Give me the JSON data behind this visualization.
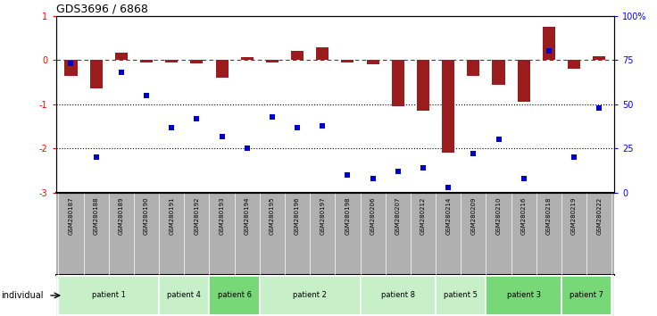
{
  "title": "GDS3696 / 6868",
  "samples": [
    "GSM280187",
    "GSM280188",
    "GSM280189",
    "GSM280190",
    "GSM280191",
    "GSM280192",
    "GSM280193",
    "GSM280194",
    "GSM280195",
    "GSM280196",
    "GSM280197",
    "GSM280198",
    "GSM280206",
    "GSM280207",
    "GSM280212",
    "GSM280214",
    "GSM280209",
    "GSM280210",
    "GSM280216",
    "GSM280218",
    "GSM280219",
    "GSM280222"
  ],
  "log2_ratio": [
    -0.35,
    -0.65,
    0.17,
    -0.05,
    -0.06,
    -0.08,
    -0.4,
    0.06,
    -0.05,
    0.2,
    0.28,
    -0.05,
    -0.1,
    -1.05,
    -1.15,
    -2.1,
    -0.35,
    -0.55,
    -0.95,
    0.75,
    -0.2,
    0.08
  ],
  "percentile_rank": [
    73,
    20,
    68,
    55,
    37,
    42,
    32,
    25,
    43,
    37,
    38,
    10,
    8,
    12,
    14,
    3,
    22,
    30,
    8,
    80,
    20,
    48
  ],
  "patients": [
    {
      "label": "patient 1",
      "start": 0,
      "end": 4,
      "color": "#c8f0c8"
    },
    {
      "label": "patient 4",
      "start": 4,
      "end": 6,
      "color": "#c8f0c8"
    },
    {
      "label": "patient 6",
      "start": 6,
      "end": 8,
      "color": "#78d878"
    },
    {
      "label": "patient 2",
      "start": 8,
      "end": 12,
      "color": "#c8f0c8"
    },
    {
      "label": "patient 8",
      "start": 12,
      "end": 15,
      "color": "#c8f0c8"
    },
    {
      "label": "patient 5",
      "start": 15,
      "end": 17,
      "color": "#c8f0c8"
    },
    {
      "label": "patient 3",
      "start": 17,
      "end": 20,
      "color": "#78d878"
    },
    {
      "label": "patient 7",
      "start": 20,
      "end": 22,
      "color": "#78d878"
    }
  ],
  "bar_color": "#9b1c1c",
  "scatter_color": "#0000cc",
  "ylim_left": [
    -3.0,
    1.0
  ],
  "ylim_right": [
    0,
    100
  ],
  "hline_zero": 0,
  "dotted_lines": [
    -1.0,
    -2.0
  ],
  "right_ticks": [
    0,
    25,
    50,
    75,
    100
  ],
  "right_tick_labels": [
    "0",
    "25",
    "50",
    "75",
    "100%"
  ],
  "left_ticks": [
    -3,
    -2,
    -1,
    0,
    1
  ],
  "background_color": "#ffffff",
  "plot_bg_color": "#ffffff",
  "header_bg": "#b0b0b0",
  "bar_width": 0.5,
  "scatter_size": 18
}
